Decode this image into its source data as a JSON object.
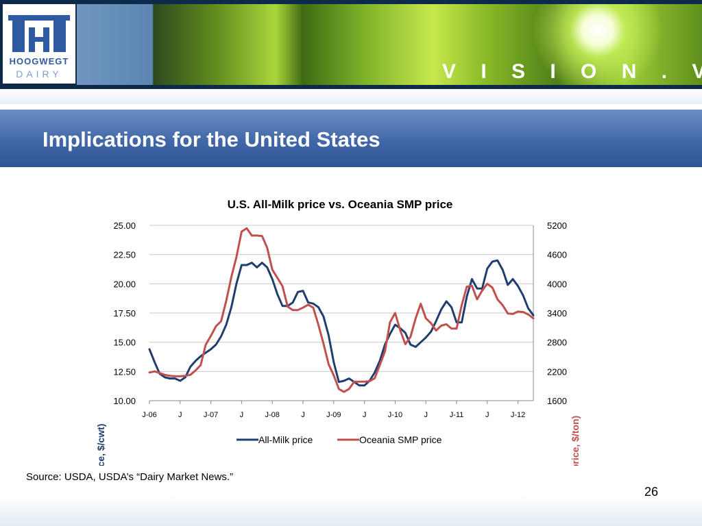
{
  "slide": {
    "title": "Implications for the United States",
    "tagline": "V I S I O N . V A L U E .",
    "logo_text": "HOOGWEGT DAIRY",
    "source": "Source: USDA, USDA’s “Dairy Market News.”",
    "page_number": "26"
  },
  "colors": {
    "milk": "#1f3d6e",
    "smp": "#c0504d",
    "title_band": "#4167a8",
    "header": "#0d2a4a"
  },
  "chart_data": {
    "type": "line",
    "title": "U.S. All-Milk price vs. Oceania SMP price",
    "ylabel_left": "(US All-Milk Price, $/cwt)",
    "ylabel_right": "(Oceania SMP price, $/ton)",
    "ylim_left": [
      10,
      25
    ],
    "ylim_right": [
      1600,
      5200
    ],
    "yticks_left": [
      "25.00",
      "22.50",
      "20.00",
      "17.50",
      "15.00",
      "12.50",
      "10.00"
    ],
    "yticks_right": [
      "5200",
      "4600",
      "4000",
      "3400",
      "2800",
      "2200",
      "1600"
    ],
    "x_tick_labels": [
      "J-06",
      "J",
      "J-07",
      "J",
      "J-08",
      "J",
      "J-09",
      "J",
      "J-10",
      "J",
      "J-11",
      "J",
      "J-12"
    ],
    "x_range_months": [
      0,
      75
    ],
    "legend_position": "bottom",
    "grid": "horizontal",
    "series": [
      {
        "name": "All-Milk price",
        "axis": "left",
        "values": [
          14.4,
          13.3,
          12.3,
          12.0,
          11.9,
          11.9,
          11.7,
          12.0,
          12.9,
          13.4,
          13.8,
          14.1,
          14.4,
          14.8,
          15.5,
          16.5,
          18.0,
          20.0,
          21.6,
          21.6,
          21.8,
          21.4,
          21.8,
          21.4,
          20.4,
          19.1,
          18.1,
          18.1,
          18.4,
          19.3,
          19.4,
          18.4,
          18.3,
          18.0,
          17.2,
          15.6,
          13.3,
          11.6,
          11.7,
          11.9,
          11.6,
          11.3,
          11.3,
          11.7,
          12.4,
          13.4,
          14.8,
          15.7,
          16.5,
          16.2,
          15.8,
          14.8,
          14.6,
          15.0,
          15.4,
          15.9,
          16.8,
          17.8,
          18.5,
          18.0,
          16.7,
          16.7,
          18.9,
          20.4,
          19.6,
          19.6,
          21.3,
          21.9,
          22.0,
          21.2,
          19.9,
          20.4,
          19.8,
          19.0,
          17.9,
          17.3
        ]
      },
      {
        "name": "Oceania SMP price",
        "axis": "right",
        "values": [
          2180,
          2200,
          2170,
          2130,
          2110,
          2100,
          2100,
          2110,
          2130,
          2220,
          2330,
          2750,
          2930,
          3130,
          3230,
          3650,
          4140,
          4550,
          5070,
          5140,
          4990,
          4990,
          4980,
          4740,
          4290,
          4120,
          3950,
          3530,
          3460,
          3460,
          3510,
          3570,
          3510,
          3160,
          2770,
          2350,
          2120,
          1840,
          1780,
          1840,
          1990,
          1990,
          1990,
          2000,
          2060,
          2330,
          2610,
          3210,
          3400,
          3040,
          2760,
          2910,
          3290,
          3590,
          3290,
          3190,
          3040,
          3140,
          3170,
          3080,
          3080,
          3560,
          3940,
          3960,
          3680,
          3860,
          4000,
          3920,
          3680,
          3560,
          3390,
          3380,
          3430,
          3420,
          3370,
          3290
        ]
      }
    ]
  }
}
